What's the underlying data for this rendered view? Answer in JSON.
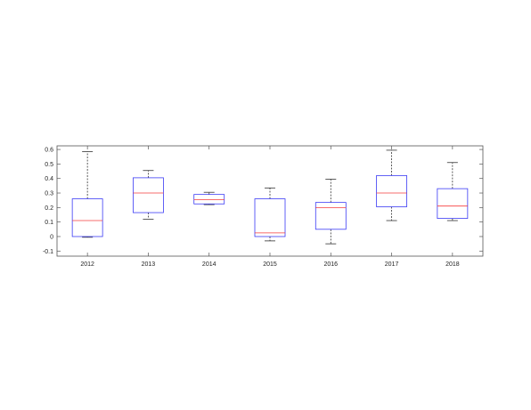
{
  "chart_data": {
    "type": "box",
    "categories": [
      "2012",
      "2013",
      "2014",
      "2015",
      "2016",
      "2017",
      "2018"
    ],
    "boxes": [
      {
        "category": "2012",
        "whisker_low": -0.005,
        "q1": 0.0,
        "median": 0.11,
        "q3": 0.26,
        "whisker_high": 0.585
      },
      {
        "category": "2013",
        "whisker_low": 0.12,
        "q1": 0.165,
        "median": 0.3,
        "q3": 0.405,
        "whisker_high": 0.455
      },
      {
        "category": "2014",
        "whisker_low": 0.22,
        "q1": 0.225,
        "median": 0.255,
        "q3": 0.29,
        "whisker_high": 0.305
      },
      {
        "category": "2015",
        "whisker_low": -0.03,
        "q1": 0.0,
        "median": 0.025,
        "q3": 0.26,
        "whisker_high": 0.335
      },
      {
        "category": "2016",
        "whisker_low": -0.05,
        "q1": 0.05,
        "median": 0.2,
        "q3": 0.235,
        "whisker_high": 0.395
      },
      {
        "category": "2017",
        "whisker_low": 0.11,
        "q1": 0.205,
        "median": 0.3,
        "q3": 0.42,
        "whisker_high": 0.595
      },
      {
        "category": "2018",
        "whisker_low": 0.11,
        "q1": 0.125,
        "median": 0.21,
        "q3": 0.33,
        "whisker_high": 0.51
      }
    ],
    "yticks": [
      "-0.1",
      "0",
      "0.1",
      "0.2",
      "0.3",
      "0.4",
      "0.5",
      "0.6"
    ],
    "ylim": [
      -0.135,
      0.625
    ],
    "title": "",
    "xlabel": "",
    "ylabel": "",
    "grid": false,
    "colors": {
      "box": "#3b3bf5",
      "median": "#f53b3b",
      "whisker": "#333333",
      "axis": "#555555"
    }
  }
}
